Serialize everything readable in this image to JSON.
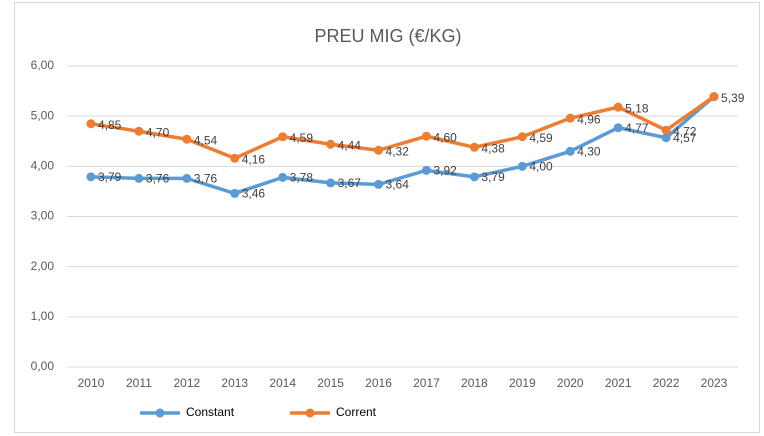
{
  "chart_data": {
    "type": "line",
    "title": "PREU MIG (€/KG)",
    "categories": [
      "2010",
      "2011",
      "2012",
      "2013",
      "2014",
      "2015",
      "2016",
      "2017",
      "2018",
      "2019",
      "2020",
      "2021",
      "2022",
      "2023"
    ],
    "series": [
      {
        "name": "Constant",
        "color": "#5b9bd5",
        "values": [
          3.79,
          3.76,
          3.76,
          3.46,
          3.78,
          3.67,
          3.64,
          3.92,
          3.79,
          4.0,
          4.3,
          4.77,
          4.57,
          5.39
        ],
        "value_labels": [
          "3,79",
          "3,76",
          "3,76",
          "3,46",
          "3,78",
          "3,67",
          "3,64",
          "3,92",
          "3,79",
          "4,00",
          "4,30",
          "4,77",
          "4,57",
          null
        ]
      },
      {
        "name": "Corrent",
        "color": "#ed7d31",
        "values": [
          4.85,
          4.7,
          4.54,
          4.16,
          4.59,
          4.44,
          4.32,
          4.6,
          4.38,
          4.59,
          4.96,
          5.18,
          4.72,
          5.39
        ],
        "value_labels": [
          "4,85",
          "4,70",
          "4,54",
          "4,16",
          "4,59",
          "4,44",
          "4,32",
          "4,60",
          "4,38",
          "4,59",
          "4,96",
          "5,18",
          "4,72",
          "5,39"
        ]
      }
    ],
    "ylim": [
      0,
      6
    ],
    "yticks": [
      {
        "value": 0,
        "label": "0,00"
      },
      {
        "value": 1,
        "label": "1,00"
      },
      {
        "value": 2,
        "label": "2,00"
      },
      {
        "value": 3,
        "label": "3,00"
      },
      {
        "value": 4,
        "label": "4,00"
      },
      {
        "value": 5,
        "label": "5,00"
      },
      {
        "value": 6,
        "label": "6,00"
      }
    ],
    "grid": true,
    "legend": "bottom"
  }
}
